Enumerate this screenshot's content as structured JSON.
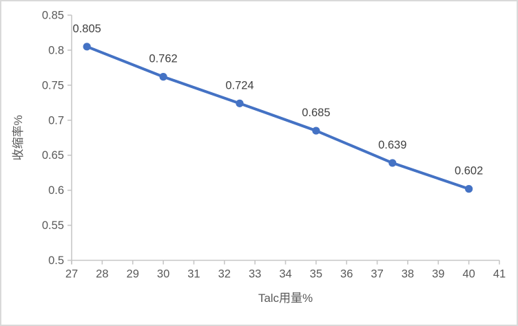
{
  "chart_data": {
    "type": "line",
    "title": "",
    "xlabel": "Talc用量%",
    "ylabel": "收缩率%",
    "x": [
      27.5,
      30,
      32.5,
      35,
      37.5,
      40
    ],
    "values": [
      0.805,
      0.762,
      0.724,
      0.685,
      0.639,
      0.602
    ],
    "data_labels": [
      "0.805",
      "0.762",
      "0.724",
      "0.685",
      "0.639",
      "0.602"
    ],
    "xlim": [
      27,
      41
    ],
    "xticks": [
      27,
      28,
      29,
      30,
      31,
      32,
      33,
      34,
      35,
      36,
      37,
      38,
      39,
      40,
      41
    ],
    "xtick_labels": [
      "27",
      "28",
      "29",
      "30",
      "31",
      "32",
      "33",
      "34",
      "35",
      "36",
      "37",
      "38",
      "39",
      "40",
      "41"
    ],
    "ylim": [
      0.5,
      0.85
    ],
    "yticks": [
      0.5,
      0.55,
      0.6,
      0.65,
      0.7,
      0.75,
      0.8,
      0.85
    ],
    "ytick_labels": [
      "0.5",
      "0.55",
      "0.6",
      "0.65",
      "0.7",
      "0.75",
      "0.8",
      "0.85"
    ],
    "grid": false,
    "legend": false,
    "colors": {
      "line": "#4472C4",
      "marker": "#4472C4",
      "axis": "#c6c6c6",
      "tick_label": "#595959",
      "axis_title": "#595959",
      "data_label": "#404040",
      "background": "#ffffff",
      "border": "#d9d9d9"
    }
  }
}
